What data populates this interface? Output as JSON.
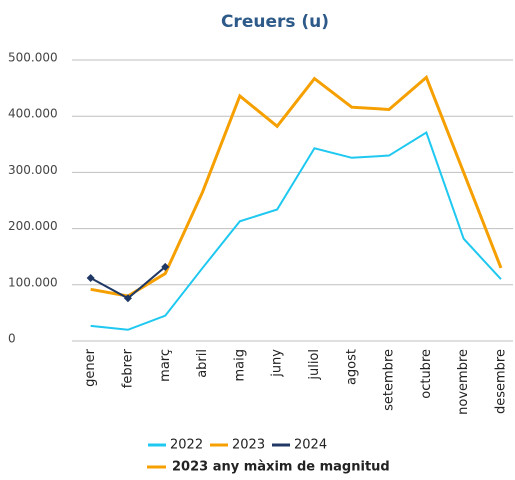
{
  "chart_data": {
    "type": "line",
    "title": "Creuers (u)",
    "categories": [
      "gener",
      "febrer",
      "març",
      "abril",
      "maig",
      "juny",
      "juliol",
      "agost",
      "setembre",
      "octubre",
      "novembre",
      "desembre"
    ],
    "series": [
      {
        "name": "2022",
        "color": "#1ec8f0",
        "values": [
          27000,
          20000,
          45000,
          130000,
          213000,
          234000,
          343000,
          326000,
          330000,
          371000,
          182000,
          110000
        ]
      },
      {
        "name": "2023",
        "color": "#f5a000",
        "values": [
          92000,
          80000,
          120000,
          265000,
          436000,
          382000,
          467000,
          416000,
          412000,
          469000,
          300000,
          130000
        ]
      },
      {
        "name": "2024",
        "color": "#1f3864",
        "values": [
          112000,
          76000,
          132000,
          null,
          null,
          null,
          null,
          null,
          null,
          null,
          null,
          null
        ]
      }
    ],
    "ylim": [
      0,
      500000
    ],
    "yticks": [
      0,
      {
        "value": 100000,
        "label": "100.000"
      },
      {
        "value": 200000,
        "label": "200.000"
      },
      {
        "value": 300000,
        "label": "300.000"
      },
      {
        "value": 400000,
        "label": "400.000"
      },
      {
        "value": 500000,
        "label": "500.000"
      }
    ],
    "grid": true,
    "annotation": "2023 any màxim de magnitud"
  }
}
